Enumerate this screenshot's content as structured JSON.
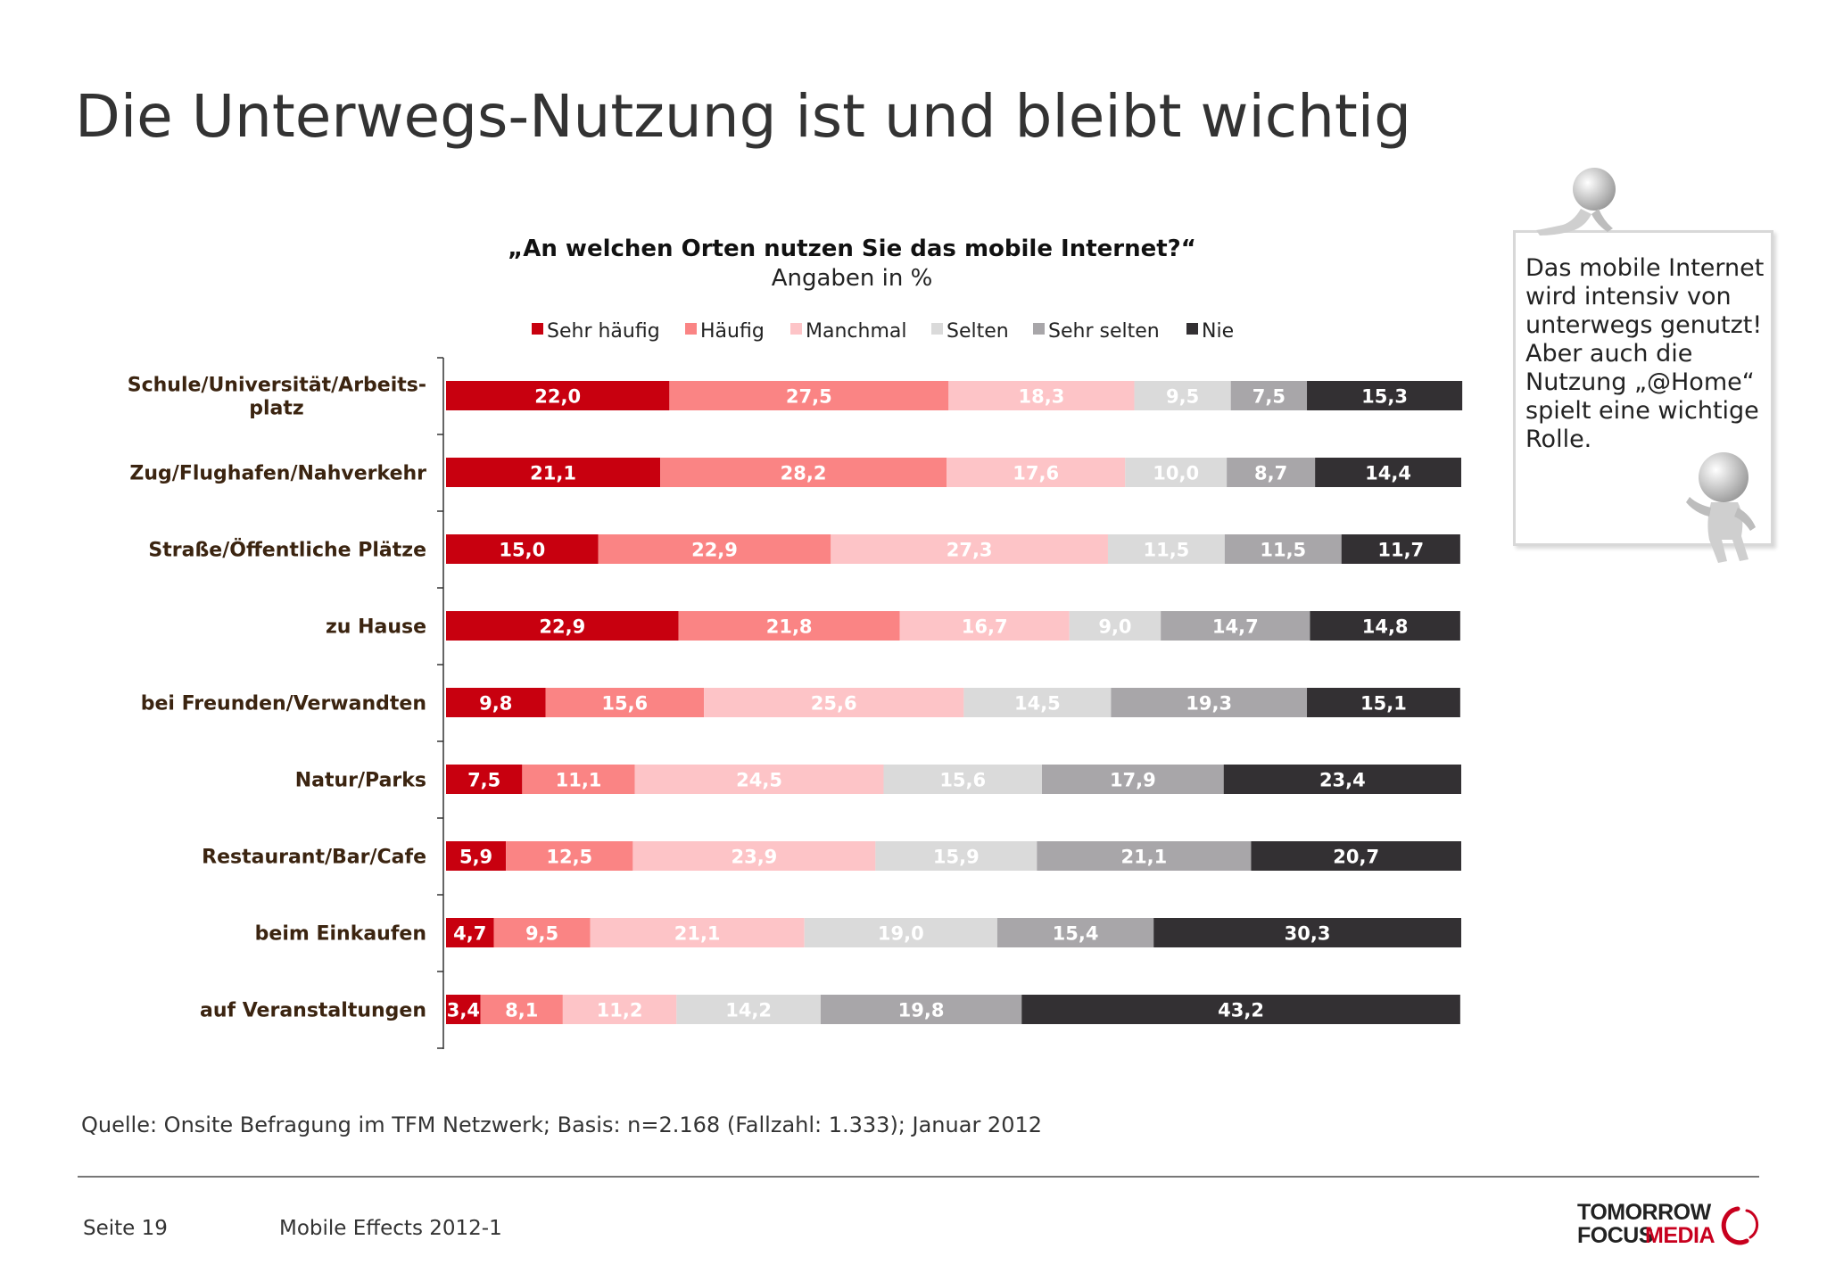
{
  "page": {
    "title": "Die Unterwegs-Nutzung ist und bleibt wichtig",
    "note": "Das mobile Internet wird intensiv von unterwegs genutzt! Aber auch die Nutzung „@Home“ spielt eine wichtige Rolle.",
    "source": "Quelle: Onsite Befragung im TFM Netzwerk; Basis: n=2.168 (Fallzahl: 1.333); Januar 2012",
    "footer": {
      "page_number": "Seite 19",
      "document": "Mobile Effects 2012-1"
    },
    "logo": {
      "line1": "TOMORROW",
      "line2a": "FOCUS",
      "line2b": "MEDIA"
    }
  },
  "chart_data": {
    "type": "bar",
    "orientation": "horizontal",
    "stacked": true,
    "title": "„An welchen Orten nutzen Sie das mobile Internet?“",
    "subtitle": "Angaben in %",
    "legend_position": "top",
    "xlim": [
      0,
      100
    ],
    "categories": [
      [
        "Schule/Universität/Arbeits-",
        "platz"
      ],
      [
        "Zug/Flughafen/Nahverkehr"
      ],
      [
        "Straße/Öffentliche Plätze"
      ],
      [
        "zu Hause"
      ],
      [
        "bei Freunden/Verwandten"
      ],
      [
        "Natur/Parks"
      ],
      [
        "Restaurant/Bar/Cafe"
      ],
      [
        "beim Einkaufen"
      ],
      [
        "auf Veranstaltungen"
      ]
    ],
    "series": [
      {
        "name": "Sehr häufig",
        "color": "#c8000f",
        "values": [
          22.0,
          21.1,
          15.0,
          22.9,
          9.8,
          7.5,
          5.9,
          4.7,
          3.4
        ],
        "labels": [
          "22,0",
          "21,1",
          "15,0",
          "22,9",
          "9,8",
          "7,5",
          "5,9",
          "4,7",
          "3,4"
        ]
      },
      {
        "name": "Häufig",
        "color": "#fa8484",
        "values": [
          27.5,
          28.2,
          22.9,
          21.8,
          15.6,
          11.1,
          12.5,
          9.5,
          8.1
        ],
        "labels": [
          "27,5",
          "28,2",
          "22,9",
          "21,8",
          "15,6",
          "11,1",
          "12,5",
          "9,5",
          "8,1"
        ]
      },
      {
        "name": "Manchmal",
        "color": "#fdc4c7",
        "values": [
          18.3,
          17.6,
          27.3,
          16.7,
          25.6,
          24.5,
          23.9,
          21.1,
          11.2
        ],
        "labels": [
          "18,3",
          "17,6",
          "27,3",
          "16,7",
          "25,6",
          "24,5",
          "23,9",
          "21,1",
          "11,2"
        ]
      },
      {
        "name": "Selten",
        "color": "#dadada",
        "values": [
          9.5,
          10.0,
          11.5,
          9.0,
          14.5,
          15.6,
          15.9,
          19.0,
          14.2
        ],
        "labels": [
          "9,5",
          "10,0",
          "11,5",
          "9,0",
          "14,5",
          "15,6",
          "15,9",
          "19,0",
          "14,2"
        ]
      },
      {
        "name": "Sehr selten",
        "color": "#a8a6a9",
        "values": [
          7.5,
          8.7,
          11.5,
          14.7,
          19.3,
          17.9,
          21.1,
          15.4,
          19.8
        ],
        "labels": [
          "7,5",
          "8,7",
          "11,5",
          "14,7",
          "19,3",
          "17,9",
          "21,1",
          "15,4",
          "19,8"
        ]
      },
      {
        "name": "Nie",
        "color": "#333033",
        "values": [
          15.3,
          14.4,
          11.7,
          14.8,
          15.1,
          23.4,
          20.7,
          30.3,
          43.2
        ],
        "labels": [
          "15,3",
          "14,4",
          "11,7",
          "14,8",
          "15,1",
          "23,4",
          "20,7",
          "30,3",
          "43,2"
        ]
      }
    ]
  }
}
